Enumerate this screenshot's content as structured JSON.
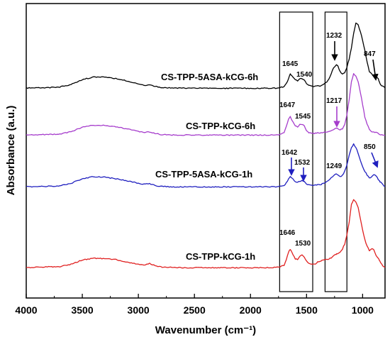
{
  "chart_data": {
    "type": "line",
    "title": "",
    "xlabel": "Wavenumber (cm⁻¹)",
    "ylabel": "Absorbance (a.u.)",
    "xlim": [
      4000,
      800
    ],
    "x_reversed": true,
    "y_ticks_shown": false,
    "grid": false,
    "legend": "none (series labeled inline)",
    "x_ticks": [
      4000,
      3500,
      3000,
      2500,
      2000,
      1500,
      1000
    ],
    "x_tick_labels": [
      "4000",
      "3500",
      "3000",
      "2500",
      "2000",
      "1500",
      "1000"
    ],
    "x": [
      4000,
      3900,
      3800,
      3700,
      3600,
      3500,
      3400,
      3300,
      3200,
      3100,
      3000,
      2950,
      2900,
      2850,
      2800,
      2700,
      2600,
      2500,
      2400,
      2300,
      2200,
      2100,
      2000,
      1900,
      1800,
      1750,
      1700,
      1680,
      1660,
      1645,
      1630,
      1600,
      1580,
      1560,
      1540,
      1520,
      1500,
      1480,
      1450,
      1420,
      1400,
      1380,
      1350,
      1320,
      1300,
      1280,
      1260,
      1240,
      1232,
      1220,
      1200,
      1180,
      1160,
      1140,
      1120,
      1100,
      1080,
      1060,
      1040,
      1020,
      1000,
      980,
      960,
      940,
      920,
      900,
      880,
      860,
      850,
      840,
      820,
      800
    ],
    "series": [
      {
        "name": "CS-TPP-5ASA-kCG-6h",
        "color": "#000000",
        "values": [
          0.6,
          0.8,
          1.0,
          1.6,
          4.0,
          8.5,
          11.0,
          11.0,
          9.5,
          7.2,
          4.5,
          3.2,
          3.8,
          2.2,
          1.2,
          0.7,
          0.5,
          0.6,
          0.4,
          0.4,
          0.4,
          0.5,
          0.4,
          0.4,
          0.5,
          0.6,
          2.0,
          5.0,
          9.5,
          14.0,
          12.0,
          8.0,
          7.5,
          9.0,
          9.5,
          8.0,
          5.0,
          3.0,
          2.2,
          2.5,
          3.2,
          2.6,
          4.0,
          6.0,
          9.0,
          14.0,
          19.5,
          22.0,
          22.5,
          21.0,
          16.0,
          14.0,
          15.0,
          20.0,
          28.0,
          38.0,
          52.0,
          62.0,
          60.0,
          54.0,
          45.0,
          36.0,
          25.0,
          16.0,
          14.0,
          11.5,
          11.0,
          9.5,
          6.0,
          4.0,
          2.2,
          0.8
        ]
      },
      {
        "name": "CS-TPP-kCG-6h",
        "color": "#a63dcc",
        "values": [
          0.6,
          0.8,
          1.0,
          1.5,
          3.8,
          8.0,
          10.0,
          9.8,
          8.5,
          6.5,
          4.0,
          3.0,
          3.6,
          2.0,
          1.0,
          0.6,
          0.4,
          0.5,
          0.4,
          0.4,
          0.4,
          0.5,
          0.4,
          0.4,
          0.6,
          0.8,
          3.0,
          9.0,
          16.0,
          18.5,
          15.0,
          9.0,
          8.5,
          10.5,
          11.0,
          9.0,
          5.0,
          2.8,
          2.0,
          2.2,
          2.5,
          2.4,
          3.0,
          3.8,
          4.2,
          5.0,
          6.0,
          6.8,
          7.0,
          6.5,
          5.5,
          6.5,
          11.0,
          20.0,
          35.0,
          52.0,
          60.0,
          58.0,
          52.0,
          42.0,
          30.0,
          18.0,
          11.0,
          6.0,
          4.0,
          3.5,
          3.0,
          2.2,
          1.2,
          0.6,
          0.4,
          0.3
        ]
      },
      {
        "name": "CS-TPP-5ASA-kCG-1h",
        "color": "#1f1fbf",
        "values": [
          0.5,
          0.7,
          0.9,
          1.4,
          3.6,
          7.5,
          9.5,
          9.0,
          7.5,
          5.8,
          3.5,
          2.8,
          3.2,
          1.6,
          0.8,
          0.5,
          0.4,
          0.4,
          0.4,
          0.4,
          0.4,
          0.4,
          0.4,
          0.4,
          0.5,
          0.5,
          1.5,
          4.0,
          7.5,
          9.5,
          8.5,
          5.0,
          4.5,
          5.5,
          6.0,
          5.0,
          3.2,
          2.2,
          1.8,
          2.0,
          2.6,
          2.2,
          3.4,
          4.8,
          6.5,
          8.5,
          10.5,
          11.8,
          12.0,
          11.0,
          9.5,
          10.5,
          14.0,
          20.0,
          28.0,
          35.0,
          38.0,
          35.0,
          30.0,
          24.0,
          18.0,
          14.0,
          11.0,
          8.0,
          9.0,
          11.5,
          10.0,
          7.0,
          5.5,
          4.5,
          2.2,
          0.8
        ]
      },
      {
        "name": "CS-TPP-kCG-1h",
        "color": "#e02020",
        "values": [
          0.5,
          1.0,
          1.2,
          1.5,
          3.5,
          7.5,
          9.0,
          8.8,
          7.8,
          5.5,
          3.5,
          3.0,
          4.2,
          2.2,
          1.2,
          0.6,
          0.4,
          0.5,
          0.4,
          0.4,
          0.4,
          0.4,
          0.4,
          0.5,
          0.6,
          0.8,
          2.5,
          8.0,
          15.0,
          17.0,
          14.0,
          8.5,
          8.0,
          11.0,
          12.0,
          10.0,
          6.5,
          4.5,
          3.5,
          4.0,
          5.5,
          6.5,
          7.5,
          8.0,
          8.5,
          9.5,
          11.0,
          12.5,
          13.0,
          13.5,
          15.0,
          17.5,
          22.0,
          30.0,
          42.0,
          58.0,
          62.0,
          60.0,
          55.0,
          45.0,
          35.0,
          26.0,
          20.0,
          16.0,
          18.0,
          17.0,
          12.0,
          9.0,
          7.0,
          5.0,
          2.5,
          0.8
        ]
      }
    ],
    "annotations": [
      {
        "series": "CS-TPP-5ASA-kCG-6h",
        "text": "1645"
      },
      {
        "series": "CS-TPP-5ASA-kCG-6h",
        "text": "1540"
      },
      {
        "series": "CS-TPP-5ASA-kCG-6h",
        "text": "1232",
        "arrow": true
      },
      {
        "series": "CS-TPP-5ASA-kCG-6h",
        "text": "847",
        "arrow": true
      },
      {
        "series": "CS-TPP-kCG-6h",
        "text": "1647"
      },
      {
        "series": "CS-TPP-kCG-6h",
        "text": "1545"
      },
      {
        "series": "CS-TPP-kCG-6h",
        "text": "1217",
        "arrow": true
      },
      {
        "series": "CS-TPP-5ASA-kCG-1h",
        "text": "1642",
        "arrow": true
      },
      {
        "series": "CS-TPP-5ASA-kCG-1h",
        "text": "1532",
        "arrow": true
      },
      {
        "series": "CS-TPP-5ASA-kCG-1h",
        "text": "1249"
      },
      {
        "series": "CS-TPP-5ASA-kCG-1h",
        "text": "850",
        "arrow": true
      },
      {
        "series": "CS-TPP-kCG-1h",
        "text": "1646"
      },
      {
        "series": "CS-TPP-kCG-1h",
        "text": "1530"
      }
    ],
    "highlight_boxes": [
      {
        "x_range": [
          1740,
          1445
        ]
      },
      {
        "x_range": [
          1335,
          1140
        ]
      }
    ]
  }
}
